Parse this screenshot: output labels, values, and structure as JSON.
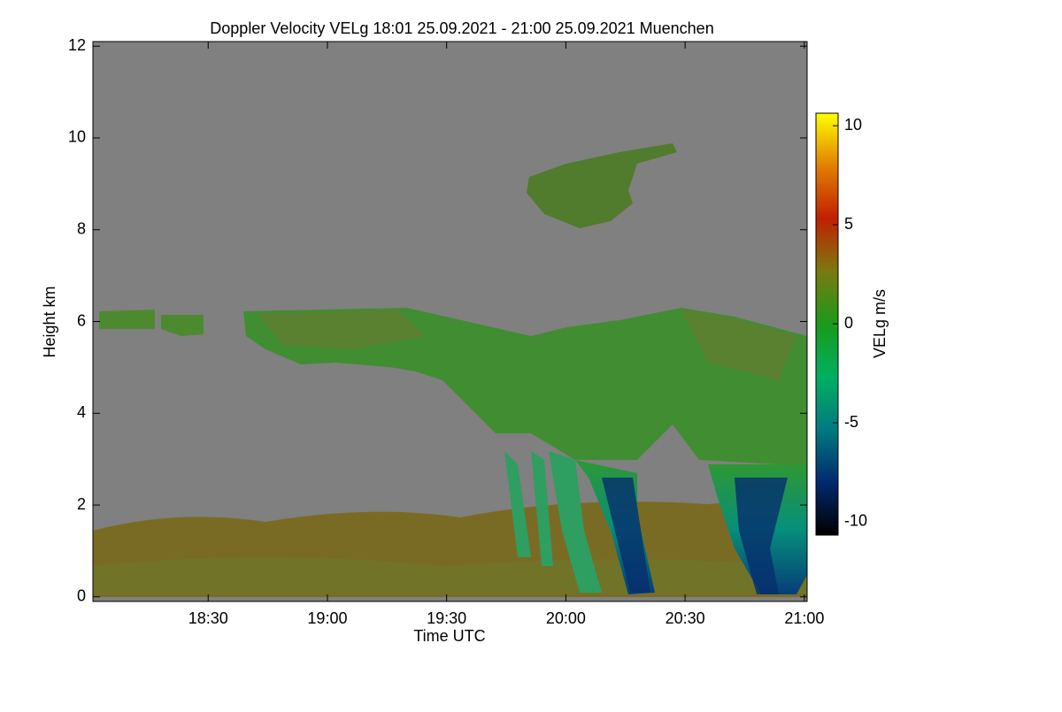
{
  "chart_data": {
    "type": "heatmap",
    "title": "Doppler Velocity VELg   18:01 25.09.2021 - 21:00 25.09.2021 Muenchen",
    "xlabel": "Time UTC",
    "ylabel": "Height km",
    "xlim": [
      18.0167,
      21.0117
    ],
    "xticks": [
      {
        "value": 18.5,
        "label": "18:30"
      },
      {
        "value": 19.0,
        "label": "19:00"
      },
      {
        "value": 19.5,
        "label": "19:30"
      },
      {
        "value": 20.0,
        "label": "20:00"
      },
      {
        "value": 20.5,
        "label": "20:30"
      },
      {
        "value": 21.0,
        "label": "21:00"
      }
    ],
    "ylim": [
      -0.1,
      12.1
    ],
    "yticks": [
      0,
      2,
      4,
      6,
      8,
      10,
      12
    ],
    "colorbar": {
      "label": "VELg m/s",
      "lim": [
        -10.67,
        10.63
      ],
      "ticks": [
        10,
        5,
        0,
        -5,
        -10
      ],
      "colormap": [
        "#000000",
        "#002a6e",
        "#007a80",
        "#00b060",
        "#1a9a1a",
        "#7a7a10",
        "#c02000",
        "#e08000",
        "#ffff00"
      ]
    },
    "background": "#808080"
  }
}
